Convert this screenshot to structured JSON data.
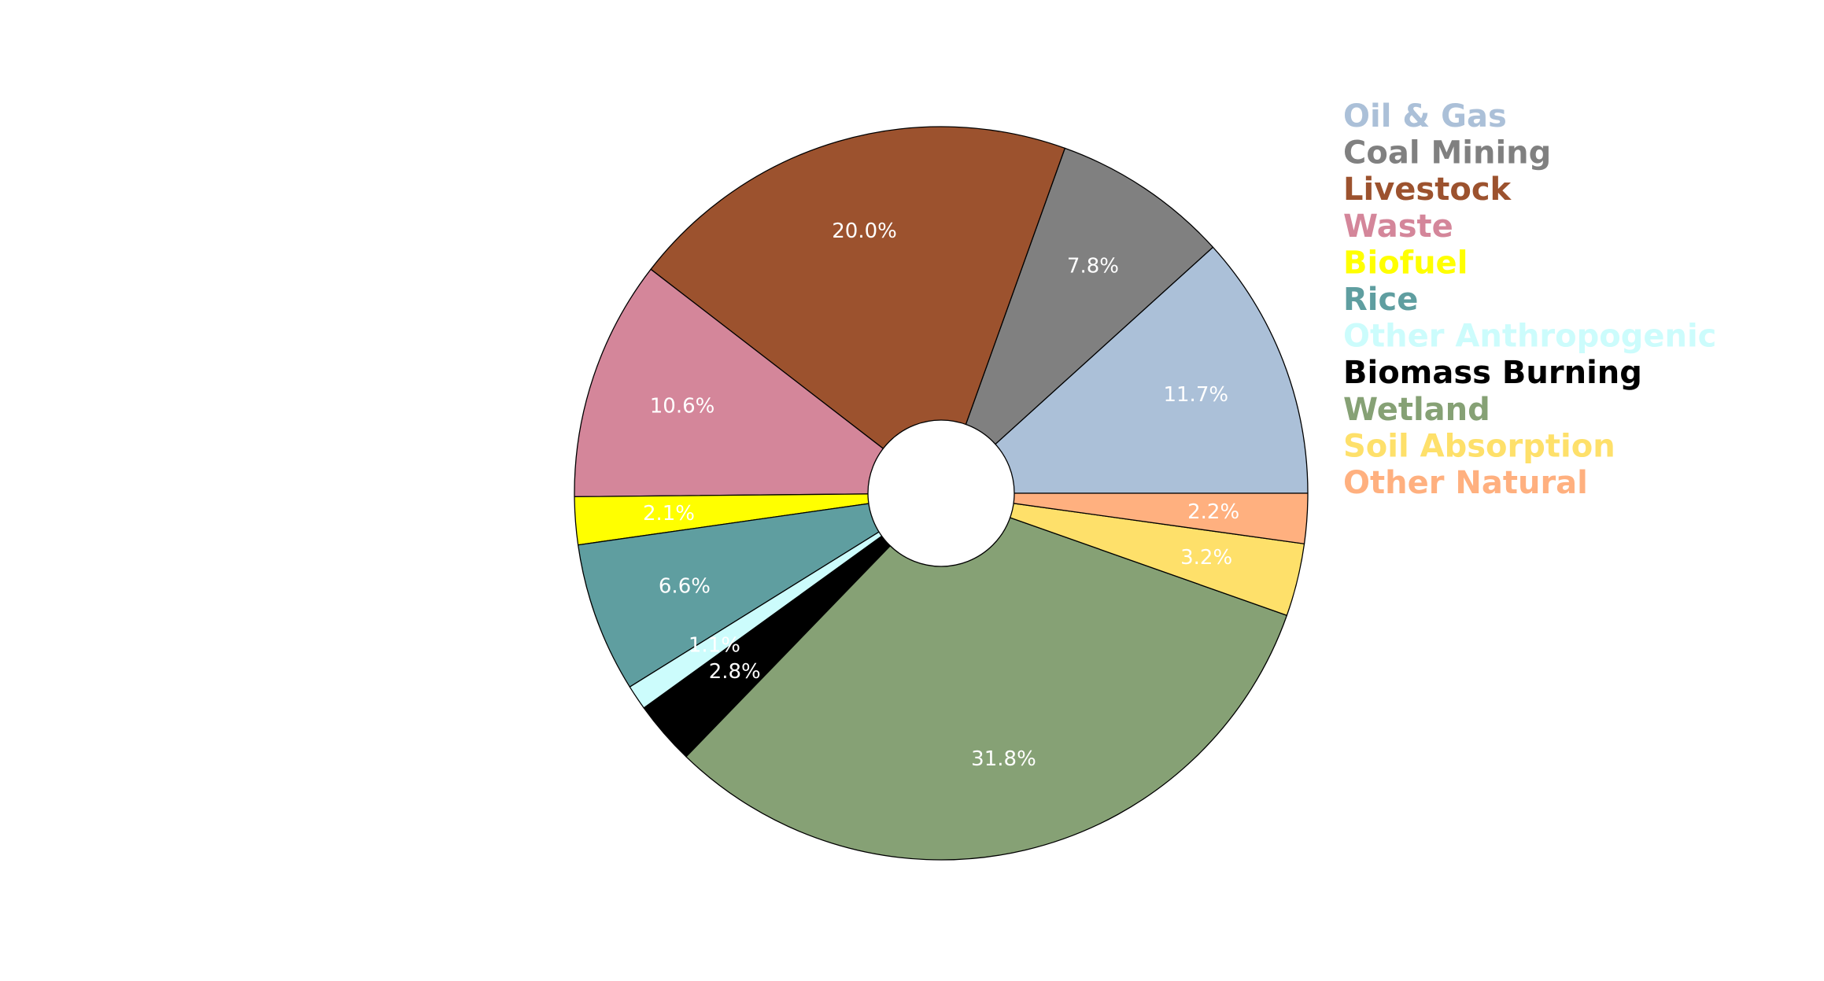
{
  "chart_data": {
    "type": "pie",
    "title": "",
    "start_angle_deg": 0,
    "direction": "counterclockwise",
    "hole": true,
    "legend_position": "upper-right",
    "slices": [
      {
        "label": "Oil & Gas",
        "value": 11.7,
        "pct_label": "11.7%",
        "color": "#abc0d8"
      },
      {
        "label": "Coal Mining",
        "value": 7.8,
        "pct_label": "7.8%",
        "color": "#808080"
      },
      {
        "label": "Livestock",
        "value": 20.0,
        "pct_label": "20.0%",
        "color": "#9c522e"
      },
      {
        "label": "Waste",
        "value": 10.6,
        "pct_label": "10.6%",
        "color": "#d4869a"
      },
      {
        "label": "Biofuel",
        "value": 2.1,
        "pct_label": "2.1%",
        "color": "#ffff00"
      },
      {
        "label": "Rice",
        "value": 6.6,
        "pct_label": "6.6%",
        "color": "#5f9ea0"
      },
      {
        "label": "Other Anthropogenic",
        "value": 1.1,
        "pct_label": "1.1%",
        "color": "#ccfcfc"
      },
      {
        "label": "Biomass Burning",
        "value": 2.8,
        "pct_label": "2.8%",
        "color": "#000000"
      },
      {
        "label": "Wetland",
        "value": 31.8,
        "pct_label": "31.8%",
        "color": "#86a175"
      },
      {
        "label": "Soil Absorption",
        "value": 3.2,
        "pct_label": "3.2%",
        "color": "#fee06a"
      },
      {
        "label": "Other Natural",
        "value": 2.2,
        "pct_label": "2.2%",
        "color": "#ffb07f"
      }
    ]
  }
}
